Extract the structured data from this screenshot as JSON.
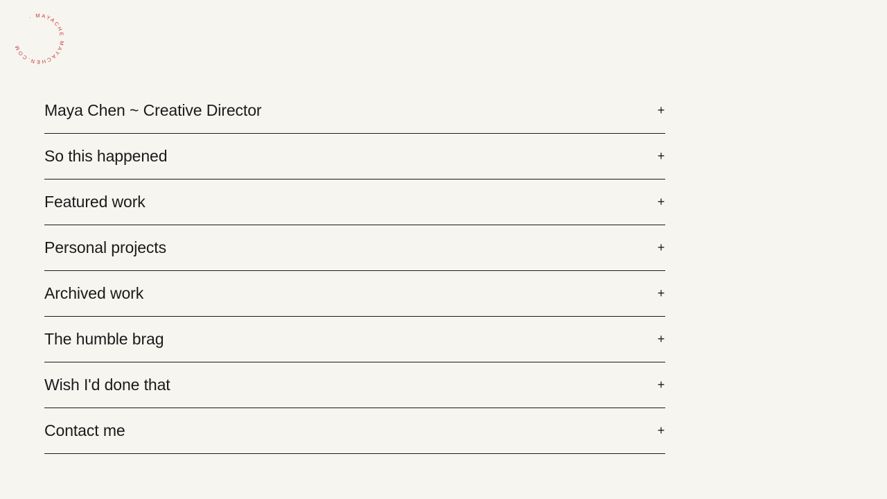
{
  "logo": {
    "text": "· MAYACHE MAYACHEN.COM",
    "color": "#c8373a"
  },
  "menu": {
    "items": [
      {
        "label": "Maya Chen ~ Creative Director",
        "icon": "+"
      },
      {
        "label": "So this happened",
        "icon": "+"
      },
      {
        "label": "Featured work",
        "icon": "+"
      },
      {
        "label": "Personal projects",
        "icon": "+"
      },
      {
        "label": "Archived work",
        "icon": "+"
      },
      {
        "label": "The humble brag",
        "icon": "+"
      },
      {
        "label": "Wish I'd done that",
        "icon": "+"
      },
      {
        "label": "Contact me",
        "icon": "+"
      }
    ]
  }
}
